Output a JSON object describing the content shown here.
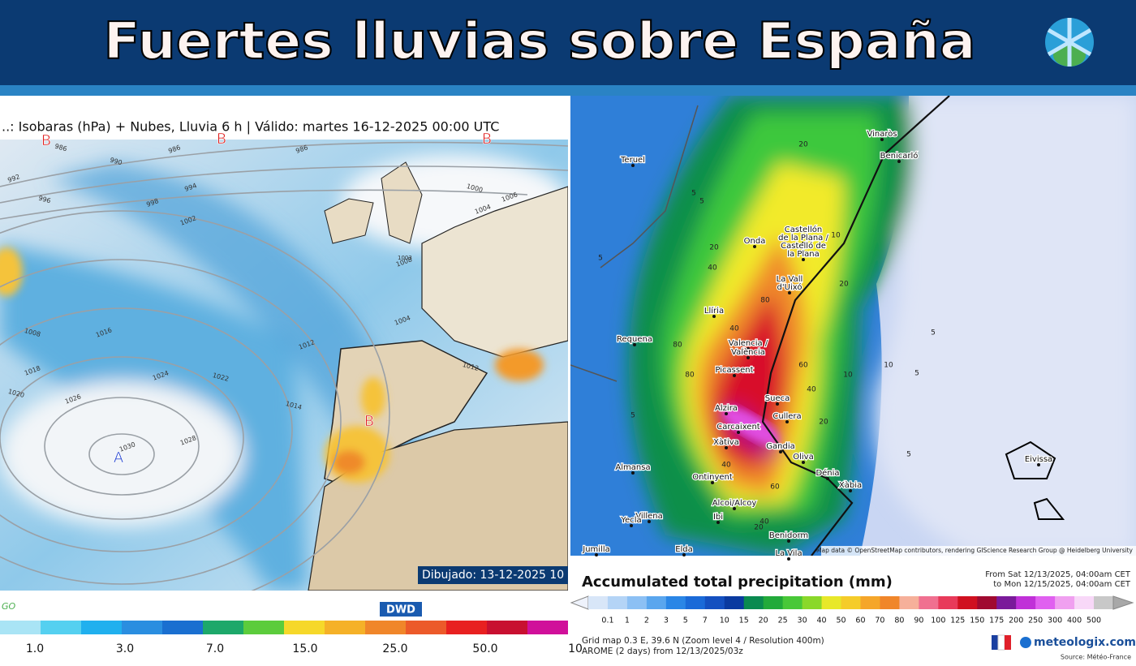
{
  "header": {
    "title": "Fuertes lluvias sobre España"
  },
  "left_map": {
    "caption": "..: Isobaras (hPa) + Nubes, Lluvia 6 h | Válido: martes 16-12-2025 00:00 UTC",
    "pressure_centers": [
      "B",
      "B",
      "B",
      "B",
      "A"
    ],
    "isobar_labels": [
      "986",
      "986",
      "986",
      "990",
      "992",
      "994",
      "996",
      "998",
      "1002",
      "1000",
      "1004",
      "1006",
      "1008",
      "1016",
      "1018",
      "1020",
      "1026",
      "1024",
      "1022",
      "1028",
      "1030",
      "1014",
      "1012",
      "1004",
      "1012",
      "1008",
      "1003"
    ],
    "drawn": "Dibujado: 13-12-2025 10",
    "logo": "GO",
    "source": "DWD",
    "legend_labels": [
      "1.0",
      "3.0",
      "7.0",
      "15.0",
      "25.0",
      "50.0",
      "10"
    ]
  },
  "right_map": {
    "cities": [
      "Vinaròs",
      "Benicarló",
      "Teruel",
      "Castellón",
      "de la Plana /",
      "Castelló de",
      "la Plana",
      "Onda",
      "La Vall",
      "d'Uixó",
      "Llíria",
      "Requena",
      "Valencia /",
      "València",
      "Picassent",
      "Sueca",
      "Alzira",
      "Cullera",
      "Carcaixent",
      "Xàtiva",
      "Gandia",
      "Oliva",
      "Almansa",
      "Ontinyent",
      "Dénia",
      "Xàbia",
      "Alcoi/Alcoy",
      "Villena",
      "Ibi",
      "Yecla",
      "Benidorm",
      "Jumilla",
      "Elda",
      "La Vila",
      "Eivissa"
    ],
    "contour_labels": [
      "20",
      "5",
      "20",
      "5",
      "10",
      "20",
      "40",
      "40",
      "80",
      "60",
      "80",
      "80",
      "40",
      "20",
      "5",
      "10",
      "5",
      "60",
      "40",
      "20",
      "40",
      "5",
      "10",
      "5",
      "5"
    ],
    "attribution": "Map data © OpenStreetMap contributors, rendering GIScience Research Group @ Heidelberg University"
  },
  "legend": {
    "title": "Accumulated total precipitation (mm)",
    "from": "From Sat 12/13/2025, 04:00am CET",
    "to": "to Mon 12/15/2025, 04:00am CET",
    "labels": [
      "0.1",
      "1",
      "2",
      "3",
      "5",
      "7",
      "10",
      "15",
      "20",
      "25",
      "30",
      "40",
      "50",
      "60",
      "70",
      "80",
      "90",
      "100",
      "125",
      "150",
      "175",
      "200",
      "250",
      "300",
      "400",
      "500"
    ],
    "grid": "Grid map 0.3 E, 39.6 N  (Zoom level 4 / Resolution 400m)",
    "model": "AROME (2 days)  from  12/13/2025/03z",
    "brand": "meteologix.com",
    "source": "Source: Météo-France"
  }
}
